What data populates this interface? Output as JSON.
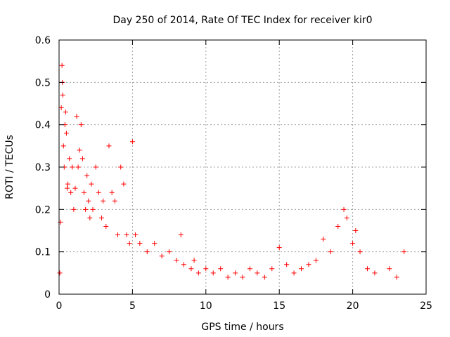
{
  "chart_data": {
    "type": "scatter",
    "title": "Day 250 of 2014, Rate Of TEC Index for receiver kir0",
    "xlabel": "GPS time / hours",
    "ylabel": "ROTI / TECUs",
    "xlim": [
      0,
      25
    ],
    "ylim": [
      0,
      0.6
    ],
    "xticks": [
      0,
      5,
      10,
      15,
      20,
      25
    ],
    "yticks": [
      0,
      0.1,
      0.2,
      0.3,
      0.4,
      0.5,
      0.6
    ],
    "xtick_labels": [
      "0",
      "5",
      "10",
      "15",
      "20",
      "25"
    ],
    "ytick_labels": [
      "0",
      "0.1",
      "0.2",
      "0.3",
      "0.4",
      "0.5",
      "0.6"
    ],
    "grid": true,
    "legend": "none",
    "marker": "plus",
    "color": "#ff0000",
    "series": [
      {
        "x": [
          0.05,
          0.1,
          0.15,
          0.2,
          0.22,
          0.25,
          0.3,
          0.35,
          0.4,
          0.45,
          0.5,
          0.55,
          0.6,
          0.7,
          0.8,
          0.9,
          1.0,
          1.1,
          1.2,
          1.3,
          1.4,
          1.5,
          1.6,
          1.7,
          1.8,
          1.9,
          2.0,
          2.1,
          2.2,
          2.3,
          2.5,
          2.7,
          2.9,
          3.0,
          3.2,
          3.4,
          3.6,
          3.8,
          4.0,
          4.2,
          4.4,
          4.6,
          4.8,
          5.0,
          5.2,
          5.5,
          6.0,
          6.5,
          7.0,
          7.5,
          8.0,
          8.3,
          8.5,
          9.0,
          9.2,
          9.5,
          10.0,
          10.5,
          11.0,
          11.5,
          12.0,
          12.5,
          13.0,
          13.5,
          14.0,
          14.5,
          15.0,
          15.5,
          16.0,
          16.5,
          17.0,
          17.5,
          18.0,
          18.5,
          19.0,
          19.4,
          19.6,
          20.0,
          20.2,
          20.5,
          21.0,
          21.5,
          22.5,
          23.0,
          23.5
        ],
        "y": [
          0.05,
          0.17,
          0.44,
          0.54,
          0.5,
          0.47,
          0.35,
          0.3,
          0.4,
          0.43,
          0.38,
          0.25,
          0.26,
          0.32,
          0.24,
          0.3,
          0.2,
          0.25,
          0.42,
          0.3,
          0.34,
          0.4,
          0.32,
          0.24,
          0.2,
          0.28,
          0.22,
          0.18,
          0.26,
          0.2,
          0.3,
          0.24,
          0.18,
          0.22,
          0.16,
          0.35,
          0.24,
          0.22,
          0.14,
          0.3,
          0.26,
          0.14,
          0.12,
          0.36,
          0.14,
          0.12,
          0.1,
          0.12,
          0.09,
          0.1,
          0.08,
          0.14,
          0.07,
          0.06,
          0.08,
          0.05,
          0.06,
          0.05,
          0.06,
          0.04,
          0.05,
          0.04,
          0.06,
          0.05,
          0.04,
          0.06,
          0.11,
          0.07,
          0.05,
          0.06,
          0.07,
          0.08,
          0.13,
          0.1,
          0.16,
          0.2,
          0.18,
          0.12,
          0.15,
          0.1,
          0.06,
          0.05,
          0.06,
          0.04,
          0.1
        ]
      }
    ]
  }
}
